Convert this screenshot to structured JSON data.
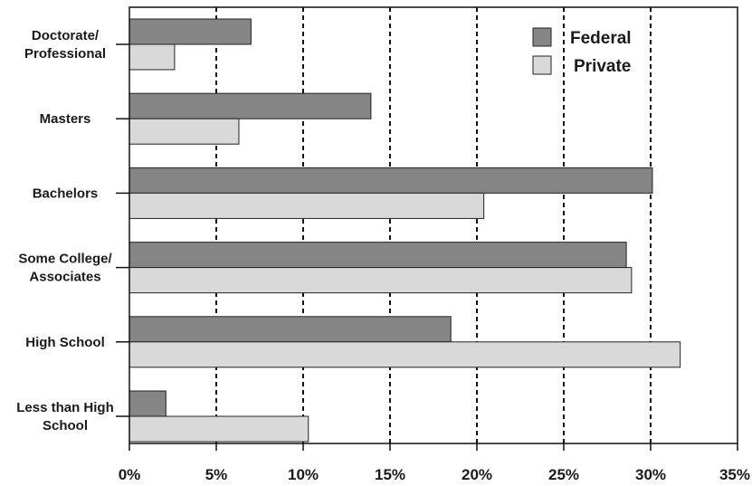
{
  "chart_data": {
    "type": "bar",
    "orientation": "horizontal",
    "title": "",
    "xlabel": "",
    "ylabel": "",
    "categories": [
      [
        "Doctorate/",
        "Professional"
      ],
      [
        "Masters"
      ],
      [
        "Bachelors"
      ],
      [
        "Some College/",
        "Associates"
      ],
      [
        "High School"
      ],
      [
        "Less than High",
        "School"
      ]
    ],
    "series": [
      {
        "name": "Federal",
        "color": "#858585",
        "values": [
          7.0,
          13.9,
          30.1,
          28.6,
          18.5,
          2.1
        ]
      },
      {
        "name": "Private",
        "color": "#d9d9d9",
        "values": [
          2.6,
          6.3,
          20.4,
          28.9,
          31.7,
          10.3
        ]
      }
    ],
    "xlim": [
      0,
      35
    ],
    "xticks": [
      0,
      5,
      10,
      15,
      20,
      25,
      30,
      35
    ],
    "xtick_labels": [
      "0%",
      "5%",
      "10%",
      "15%",
      "20%",
      "25%",
      "30%",
      "35%"
    ],
    "grid": "vertical dashed",
    "legend": {
      "position": "top-right",
      "labels": [
        "Federal",
        "Private"
      ]
    }
  }
}
